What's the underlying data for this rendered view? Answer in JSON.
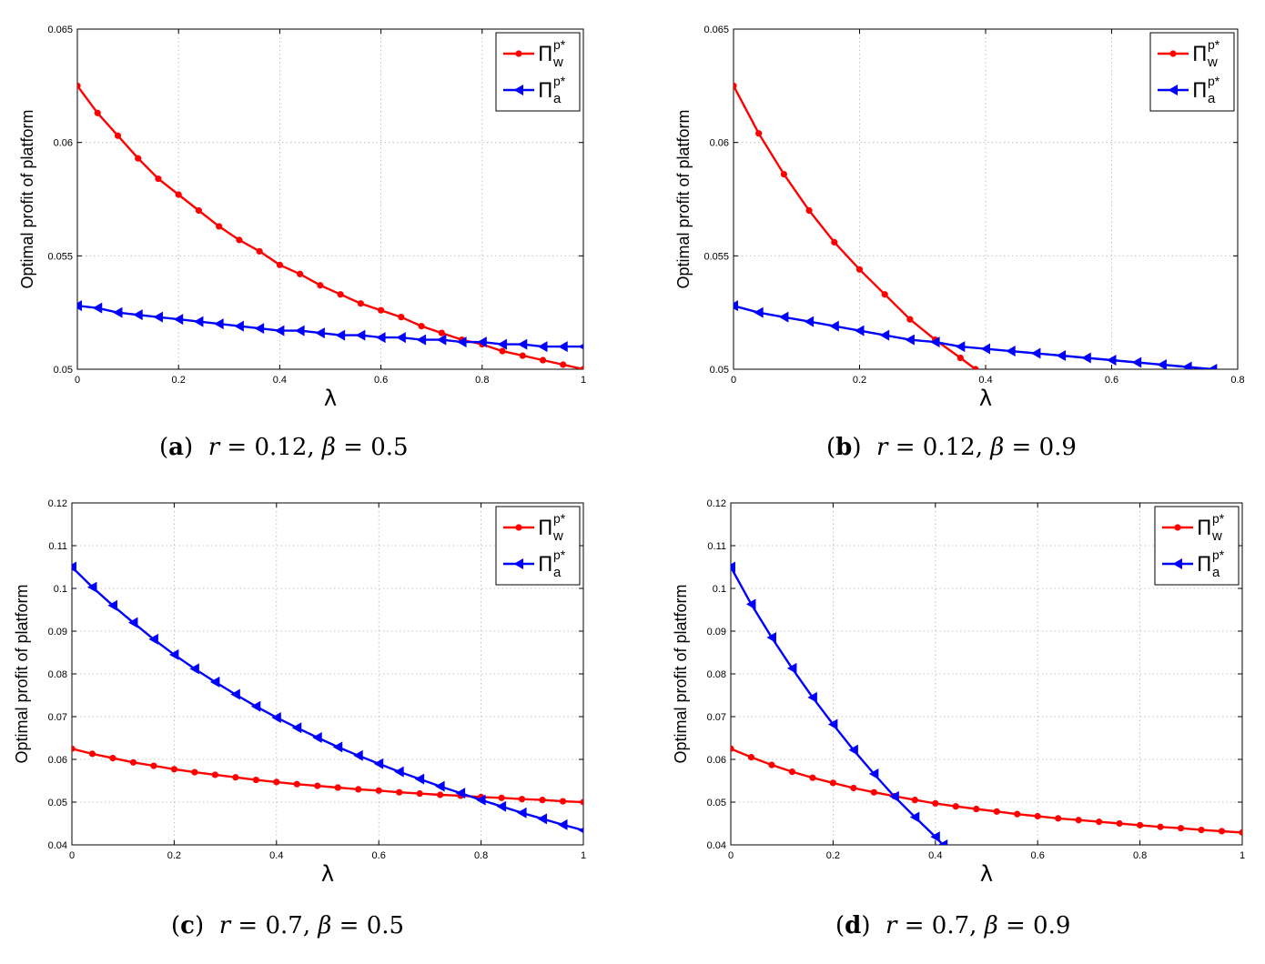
{
  "chart_data": [
    {
      "type": "line",
      "panel_label": "a",
      "caption": {
        "r_name": "r",
        "r_value": "0.12",
        "beta_name": "β",
        "beta_value": "0.5"
      },
      "xlabel": "λ",
      "ylabel": "Optimal profit of platform",
      "xlim": [
        0,
        1
      ],
      "ylim": [
        0.05,
        0.065
      ],
      "xticks": [
        "0",
        "0.2",
        "0.4",
        "0.6",
        "0.8",
        "1"
      ],
      "yticks": [
        "0.05",
        "0.055",
        "0.06",
        "0.065"
      ],
      "grid": true,
      "legend_position": "top-right",
      "series": [
        {
          "name": "Π_w^p*",
          "symbol": "Π",
          "superscript": "p*",
          "subscript": "w",
          "color": "#ff0000",
          "marker": "circle",
          "x": [
            0,
            0.04,
            0.08,
            0.12,
            0.16,
            0.2,
            0.24,
            0.28,
            0.32,
            0.36,
            0.4,
            0.44,
            0.48,
            0.52,
            0.56,
            0.6,
            0.64,
            0.68,
            0.72,
            0.76,
            0.8,
            0.84,
            0.88,
            0.92,
            0.96,
            1
          ],
          "values": [
            0.0625,
            0.0613,
            0.0603,
            0.0593,
            0.0584,
            0.0577,
            0.057,
            0.0563,
            0.0557,
            0.0552,
            0.0546,
            0.0542,
            0.0537,
            0.0533,
            0.0529,
            0.0526,
            0.0523,
            0.0519,
            0.0516,
            0.0513,
            0.0511,
            0.0508,
            0.0506,
            0.0504,
            0.0502,
            0.05
          ]
        },
        {
          "name": "Π_a^p*",
          "symbol": "Π",
          "superscript": "p*",
          "subscript": "a",
          "color": "#0000ff",
          "marker": "triangle-left",
          "x": [
            0,
            0.04,
            0.08,
            0.12,
            0.16,
            0.2,
            0.24,
            0.28,
            0.32,
            0.36,
            0.4,
            0.44,
            0.48,
            0.52,
            0.56,
            0.6,
            0.64,
            0.68,
            0.72,
            0.76,
            0.8,
            0.84,
            0.88,
            0.92,
            0.96,
            1
          ],
          "values": [
            0.0528,
            0.0527,
            0.0525,
            0.0524,
            0.0523,
            0.0522,
            0.0521,
            0.052,
            0.0519,
            0.0518,
            0.0517,
            0.0517,
            0.0516,
            0.0515,
            0.0515,
            0.0514,
            0.0514,
            0.0513,
            0.0513,
            0.0512,
            0.0512,
            0.0511,
            0.0511,
            0.051,
            0.051,
            0.051
          ]
        }
      ]
    },
    {
      "type": "line",
      "panel_label": "b",
      "caption": {
        "r_name": "r",
        "r_value": "0.12",
        "beta_name": "β",
        "beta_value": "0.9"
      },
      "xlabel": "λ",
      "ylabel": "Optimal profit of platform",
      "xlim": [
        0,
        0.8
      ],
      "ylim": [
        0.05,
        0.065
      ],
      "xticks": [
        "0",
        "0.2",
        "0.4",
        "0.6",
        "0.8"
      ],
      "yticks": [
        "0.05",
        "0.055",
        "0.06",
        "0.065"
      ],
      "grid": true,
      "legend_position": "top-right",
      "series": [
        {
          "name": "Π_w^p*",
          "symbol": "Π",
          "superscript": "p*",
          "subscript": "w",
          "color": "#ff0000",
          "marker": "circle",
          "x": [
            0,
            0.04,
            0.08,
            0.12,
            0.16,
            0.2,
            0.24,
            0.28,
            0.32,
            0.36,
            0.384
          ],
          "values": [
            0.0625,
            0.0604,
            0.0586,
            0.057,
            0.0556,
            0.0544,
            0.0533,
            0.0522,
            0.0513,
            0.0505,
            0.05
          ]
        },
        {
          "name": "Π_a^p*",
          "symbol": "Π",
          "superscript": "p*",
          "subscript": "a",
          "color": "#0000ff",
          "marker": "triangle-left",
          "x": [
            0,
            0.04,
            0.08,
            0.12,
            0.16,
            0.2,
            0.24,
            0.28,
            0.32,
            0.36,
            0.4,
            0.44,
            0.48,
            0.52,
            0.56,
            0.6,
            0.64,
            0.68,
            0.72,
            0.76
          ],
          "values": [
            0.0528,
            0.0525,
            0.0523,
            0.0521,
            0.0519,
            0.0517,
            0.0515,
            0.0513,
            0.0512,
            0.051,
            0.0509,
            0.0508,
            0.0507,
            0.0506,
            0.0505,
            0.0504,
            0.0503,
            0.0502,
            0.0501,
            0.05
          ]
        }
      ]
    },
    {
      "type": "line",
      "panel_label": "c",
      "caption": {
        "r_name": "r",
        "r_value": "0.7",
        "beta_name": "β",
        "beta_value": "0.5"
      },
      "xlabel": "λ",
      "ylabel": "Optimal profit of platform",
      "xlim": [
        0,
        1
      ],
      "ylim": [
        0.04,
        0.12
      ],
      "xticks": [
        "0",
        "0.2",
        "0.4",
        "0.6",
        "0.8",
        "1"
      ],
      "yticks": [
        "0.04",
        "0.05",
        "0.06",
        "0.07",
        "0.08",
        "0.09",
        "0.1",
        "0.11",
        "0.12"
      ],
      "grid": true,
      "legend_position": "top-right",
      "series": [
        {
          "name": "Π_w^p*",
          "symbol": "Π",
          "superscript": "p*",
          "subscript": "w",
          "color": "#ff0000",
          "marker": "circle",
          "x": [
            0,
            0.04,
            0.08,
            0.12,
            0.16,
            0.2,
            0.24,
            0.28,
            0.32,
            0.36,
            0.4,
            0.44,
            0.48,
            0.52,
            0.56,
            0.6,
            0.64,
            0.68,
            0.72,
            0.76,
            0.8,
            0.84,
            0.88,
            0.92,
            0.96,
            1
          ],
          "values": [
            0.0625,
            0.0613,
            0.0603,
            0.0593,
            0.0585,
            0.0577,
            0.057,
            0.0564,
            0.0558,
            0.0552,
            0.0547,
            0.0542,
            0.0538,
            0.0534,
            0.053,
            0.0527,
            0.0523,
            0.052,
            0.0517,
            0.0515,
            0.0512,
            0.051,
            0.0507,
            0.0505,
            0.0502,
            0.05
          ]
        },
        {
          "name": "Π_a^p*",
          "symbol": "Π",
          "superscript": "p*",
          "subscript": "a",
          "color": "#0000ff",
          "marker": "triangle-left",
          "x": [
            0,
            0.04,
            0.08,
            0.12,
            0.16,
            0.2,
            0.24,
            0.28,
            0.32,
            0.36,
            0.4,
            0.44,
            0.48,
            0.52,
            0.56,
            0.6,
            0.64,
            0.68,
            0.72,
            0.76,
            0.8,
            0.84,
            0.88,
            0.92,
            0.96,
            1
          ],
          "values": [
            0.105,
            0.1003,
            0.096,
            0.092,
            0.0881,
            0.0845,
            0.0812,
            0.0781,
            0.0752,
            0.0724,
            0.0698,
            0.0674,
            0.0651,
            0.0629,
            0.0609,
            0.059,
            0.0571,
            0.0554,
            0.0537,
            0.0521,
            0.0505,
            0.049,
            0.0475,
            0.0461,
            0.0447,
            0.0434
          ]
        }
      ]
    },
    {
      "type": "line",
      "panel_label": "d",
      "caption": {
        "r_name": "r",
        "r_value": "0.7",
        "beta_name": "β",
        "beta_value": "0.9"
      },
      "xlabel": "λ",
      "ylabel": "Optimal profit of platform",
      "xlim": [
        0,
        1
      ],
      "ylim": [
        0.04,
        0.12
      ],
      "xticks": [
        "0",
        "0.2",
        "0.4",
        "0.6",
        "0.8",
        "1"
      ],
      "yticks": [
        "0.04",
        "0.05",
        "0.06",
        "0.07",
        "0.08",
        "0.09",
        "0.1",
        "0.11",
        "0.12"
      ],
      "grid": true,
      "legend_position": "top-right",
      "series": [
        {
          "name": "Π_w^p*",
          "symbol": "Π",
          "superscript": "p*",
          "subscript": "w",
          "color": "#ff0000",
          "marker": "circle",
          "x": [
            0,
            0.04,
            0.08,
            0.12,
            0.16,
            0.2,
            0.24,
            0.28,
            0.32,
            0.36,
            0.4,
            0.44,
            0.48,
            0.52,
            0.56,
            0.6,
            0.64,
            0.68,
            0.72,
            0.76,
            0.8,
            0.84,
            0.88,
            0.92,
            0.96,
            1
          ],
          "values": [
            0.0625,
            0.0605,
            0.0587,
            0.0571,
            0.0557,
            0.0545,
            0.0533,
            0.0523,
            0.0514,
            0.0505,
            0.0497,
            0.049,
            0.0484,
            0.0478,
            0.0472,
            0.0467,
            0.0462,
            0.0458,
            0.0454,
            0.045,
            0.0446,
            0.0442,
            0.0439,
            0.0435,
            0.0432,
            0.0429
          ]
        },
        {
          "name": "Π_a^p*",
          "symbol": "Π",
          "superscript": "p*",
          "subscript": "a",
          "color": "#0000ff",
          "marker": "triangle-left",
          "x": [
            0,
            0.04,
            0.08,
            0.12,
            0.16,
            0.2,
            0.24,
            0.28,
            0.32,
            0.36,
            0.4,
            0.415
          ],
          "values": [
            0.105,
            0.0963,
            0.0885,
            0.0813,
            0.0745,
            0.0682,
            0.0622,
            0.0566,
            0.0513,
            0.0465,
            0.0419,
            0.04
          ]
        }
      ]
    }
  ]
}
